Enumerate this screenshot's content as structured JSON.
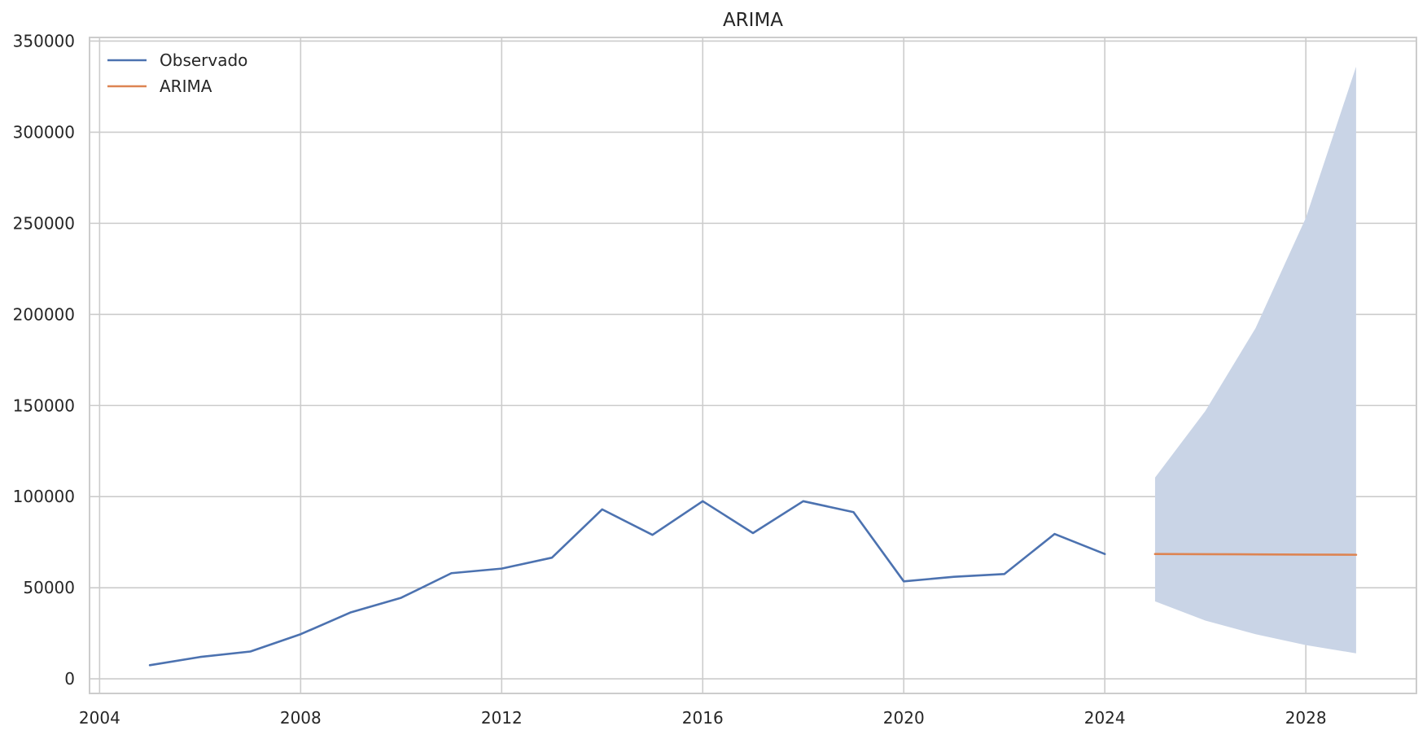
{
  "chart_data": {
    "type": "line",
    "title": "ARIMA",
    "xlabel": "",
    "ylabel": "",
    "xlim": [
      2003.8,
      2030.2
    ],
    "ylim": [
      -8000,
      352000
    ],
    "x_ticks": [
      2004,
      2008,
      2012,
      2016,
      2020,
      2024,
      2028
    ],
    "y_ticks": [
      0,
      50000,
      100000,
      150000,
      200000,
      250000,
      300000,
      350000
    ],
    "grid": true,
    "legend_position": "top-left",
    "series": [
      {
        "name": "Observado",
        "color": "#4c72b0",
        "x": [
          2005,
          2006,
          2007,
          2008,
          2009,
          2010,
          2011,
          2012,
          2013,
          2014,
          2015,
          2016,
          2017,
          2018,
          2019,
          2020,
          2021,
          2022,
          2023,
          2024
        ],
        "values": [
          7500,
          12000,
          15000,
          24500,
          36500,
          44500,
          58000,
          60500,
          66500,
          93000,
          79000,
          97500,
          80000,
          97500,
          91500,
          53500,
          56000,
          57500,
          79500,
          68500
        ]
      },
      {
        "name": "ARIMA",
        "color": "#dd8452",
        "x": [
          2025,
          2026,
          2027,
          2028,
          2029
        ],
        "values": [
          68500,
          68400,
          68300,
          68200,
          68100
        ]
      }
    ],
    "confidence_band": {
      "color": "#c9d4e6",
      "x": [
        2025,
        2026,
        2027,
        2028,
        2029
      ],
      "lower": [
        42500,
        32000,
        24500,
        18500,
        14000
      ],
      "upper": [
        110500,
        147000,
        192500,
        253000,
        336000
      ]
    }
  }
}
